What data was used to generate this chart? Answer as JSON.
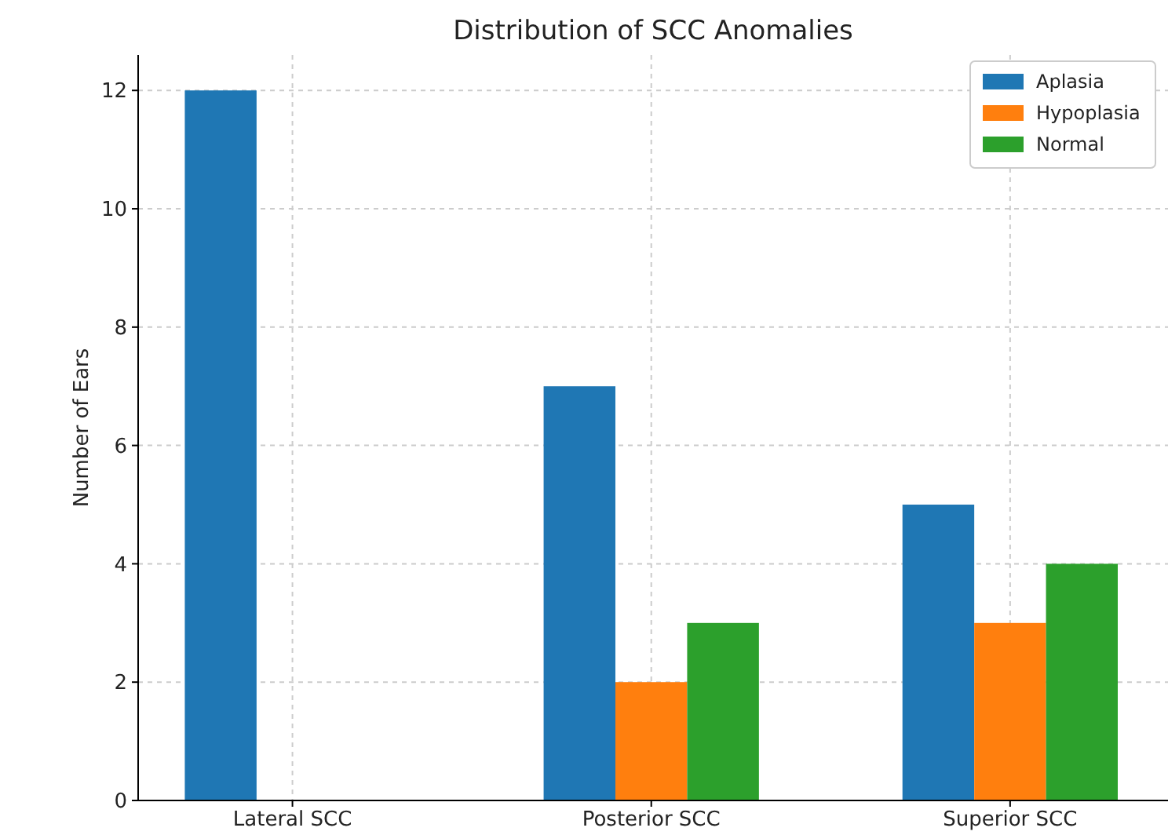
{
  "chart_data": {
    "type": "bar",
    "title": "Distribution of SCC Anomalies",
    "ylabel": "Number of Ears",
    "categories": [
      "Lateral SCC",
      "Posterior SCC",
      "Superior SCC"
    ],
    "series": [
      {
        "name": "Aplasia",
        "color": "#1f77b4",
        "values": [
          12,
          7,
          5
        ]
      },
      {
        "name": "Hypoplasia",
        "color": "#ff7f0e",
        "values": [
          0,
          2,
          3
        ]
      },
      {
        "name": "Normal",
        "color": "#2ca02c",
        "values": [
          0,
          3,
          4
        ]
      }
    ],
    "ylim": [
      0,
      12.6
    ],
    "yticks": [
      0,
      2,
      4,
      6,
      8,
      10,
      12
    ],
    "grid": true,
    "legend": "top right"
  }
}
